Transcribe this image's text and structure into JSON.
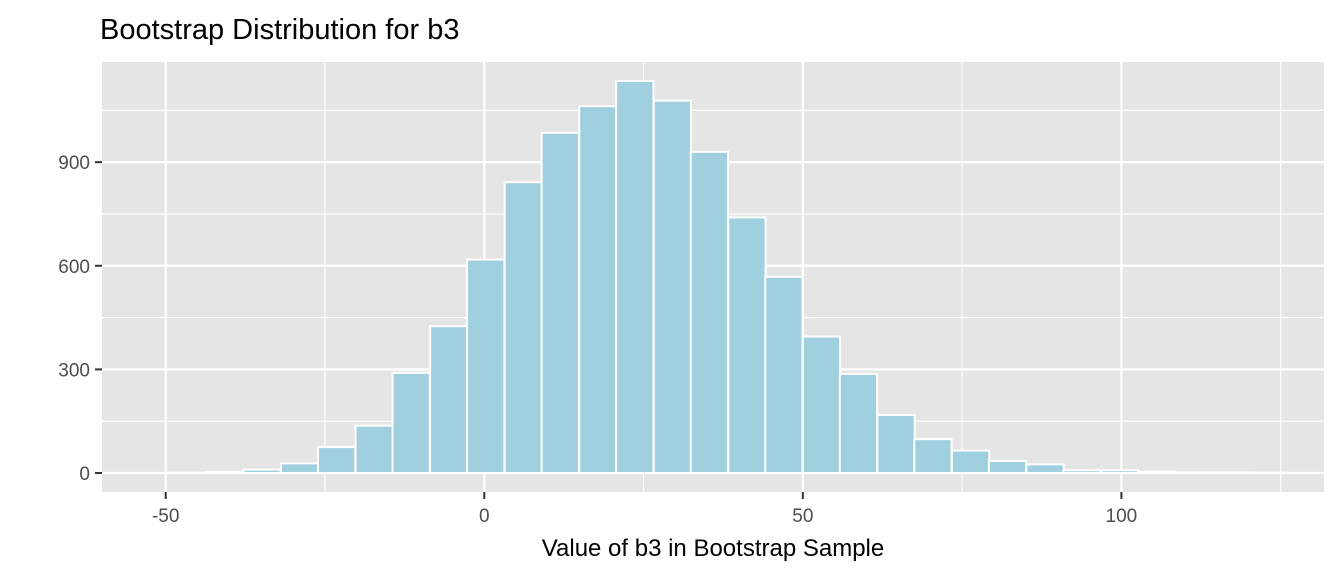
{
  "chart_data": {
    "type": "bar",
    "title": "Bootstrap Distribution for b3",
    "xlabel": "Value of b3 in Bootstrap Sample",
    "ylabel": "",
    "bin_width": 5.85,
    "bins": [
      {
        "x0": -49.5,
        "count": 1
      },
      {
        "x0": -43.6,
        "count": 3
      },
      {
        "x0": -37.8,
        "count": 10
      },
      {
        "x0": -31.9,
        "count": 28
      },
      {
        "x0": -26.1,
        "count": 75
      },
      {
        "x0": -20.2,
        "count": 137
      },
      {
        "x0": -14.4,
        "count": 290
      },
      {
        "x0": -8.5,
        "count": 425
      },
      {
        "x0": -2.7,
        "count": 618
      },
      {
        "x0": 3.2,
        "count": 842
      },
      {
        "x0": 9.0,
        "count": 985
      },
      {
        "x0": 14.9,
        "count": 1062
      },
      {
        "x0": 20.7,
        "count": 1135
      },
      {
        "x0": 26.6,
        "count": 1078
      },
      {
        "x0": 32.4,
        "count": 930
      },
      {
        "x0": 38.3,
        "count": 740
      },
      {
        "x0": 44.1,
        "count": 568
      },
      {
        "x0": 50.0,
        "count": 395
      },
      {
        "x0": 55.8,
        "count": 287
      },
      {
        "x0": 61.7,
        "count": 168
      },
      {
        "x0": 67.5,
        "count": 98
      },
      {
        "x0": 73.4,
        "count": 65
      },
      {
        "x0": 79.2,
        "count": 35
      },
      {
        "x0": 85.1,
        "count": 25
      },
      {
        "x0": 90.9,
        "count": 8
      },
      {
        "x0": 96.8,
        "count": 8
      },
      {
        "x0": 102.6,
        "count": 4
      },
      {
        "x0": 108.5,
        "count": 2
      },
      {
        "x0": 114.3,
        "count": 2
      },
      {
        "x0": 120.2,
        "count": 1
      }
    ],
    "x_ticks": [
      -50,
      0,
      50,
      100
    ],
    "x_tick_labels": [
      "-50",
      "0",
      "50",
      "100"
    ],
    "y_ticks": [
      0,
      300,
      600,
      900
    ],
    "y_tick_labels": [
      "0",
      "300",
      "600",
      "900"
    ],
    "xlim": [
      -60,
      131.8
    ],
    "ylim": [
      -55,
      1190
    ],
    "grid": true,
    "colors": {
      "bar_fill": "#a0cfe0",
      "bar_outline": "#ffffff",
      "panel_background": "#e5e5e5",
      "grid": "#ffffff"
    }
  }
}
